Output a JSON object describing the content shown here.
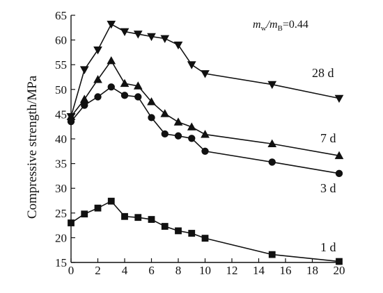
{
  "chart_data": {
    "type": "line",
    "title": "",
    "xlabel": "",
    "ylabel": "Compressive strength/MPa",
    "annotation": {
      "mw_label": "m",
      "mw_sub": "w",
      "slash": "/",
      "mb_label": "m",
      "mb_sub": "B",
      "value": "=0.44"
    },
    "xlim": [
      0,
      20
    ],
    "ylim": [
      15,
      65
    ],
    "xticks": [
      0,
      2,
      4,
      6,
      8,
      10,
      12,
      14,
      16,
      18,
      20
    ],
    "yticks": [
      15,
      20,
      25,
      30,
      35,
      40,
      45,
      50,
      55,
      60,
      65
    ],
    "grid": false,
    "x": [
      0,
      1,
      2,
      3,
      4,
      5,
      6,
      7,
      8,
      9,
      10,
      15,
      20
    ],
    "series": [
      {
        "name": "28 d",
        "marker": "triangle-down",
        "values": [
          44.5,
          54,
          58,
          63.2,
          61.7,
          61.2,
          60.7,
          60.3,
          59,
          55,
          53.2,
          51,
          48.2
        ]
      },
      {
        "name": "7 d",
        "marker": "triangle-up",
        "values": [
          44.5,
          48,
          52,
          55.8,
          51.2,
          50.7,
          47.5,
          45.1,
          43.4,
          42.4,
          40.9,
          39,
          36.6
        ]
      },
      {
        "name": "3 d",
        "marker": "circle",
        "values": [
          43.5,
          46.8,
          48.5,
          50.5,
          48.8,
          48.5,
          44.3,
          41,
          40.6,
          40.1,
          37.5,
          35.3,
          33
        ]
      },
      {
        "name": "1 d",
        "marker": "square",
        "values": [
          23,
          24.8,
          26,
          27.4,
          24.3,
          24.1,
          23.7,
          22.3,
          21.4,
          20.9,
          19.9,
          16.6,
          15.2
        ]
      }
    ]
  }
}
